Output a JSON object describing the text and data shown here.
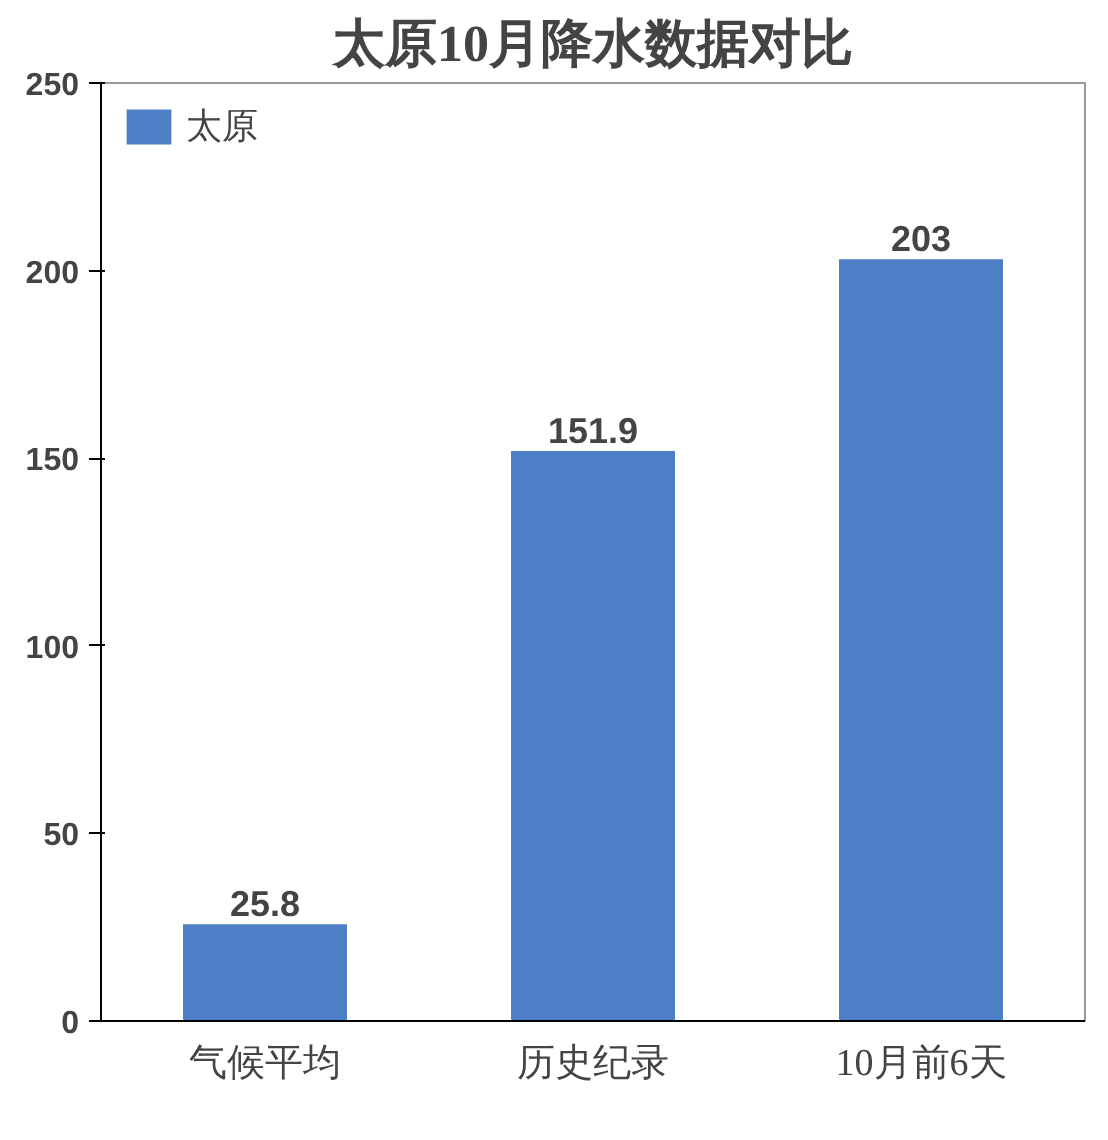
{
  "chart_data": {
    "type": "bar",
    "title": "太原10月降水数据对比",
    "categories": [
      "气候平均",
      "历史纪录",
      "10月前6天"
    ],
    "series": [
      {
        "name": "太原",
        "color": "#4f7fc6",
        "values": [
          25.8,
          151.9,
          203
        ]
      }
    ],
    "ylim": [
      0,
      250
    ],
    "yticks": [
      0,
      50,
      100,
      150,
      200,
      250
    ],
    "grid": false,
    "legend": "top left",
    "data_labels": true
  }
}
